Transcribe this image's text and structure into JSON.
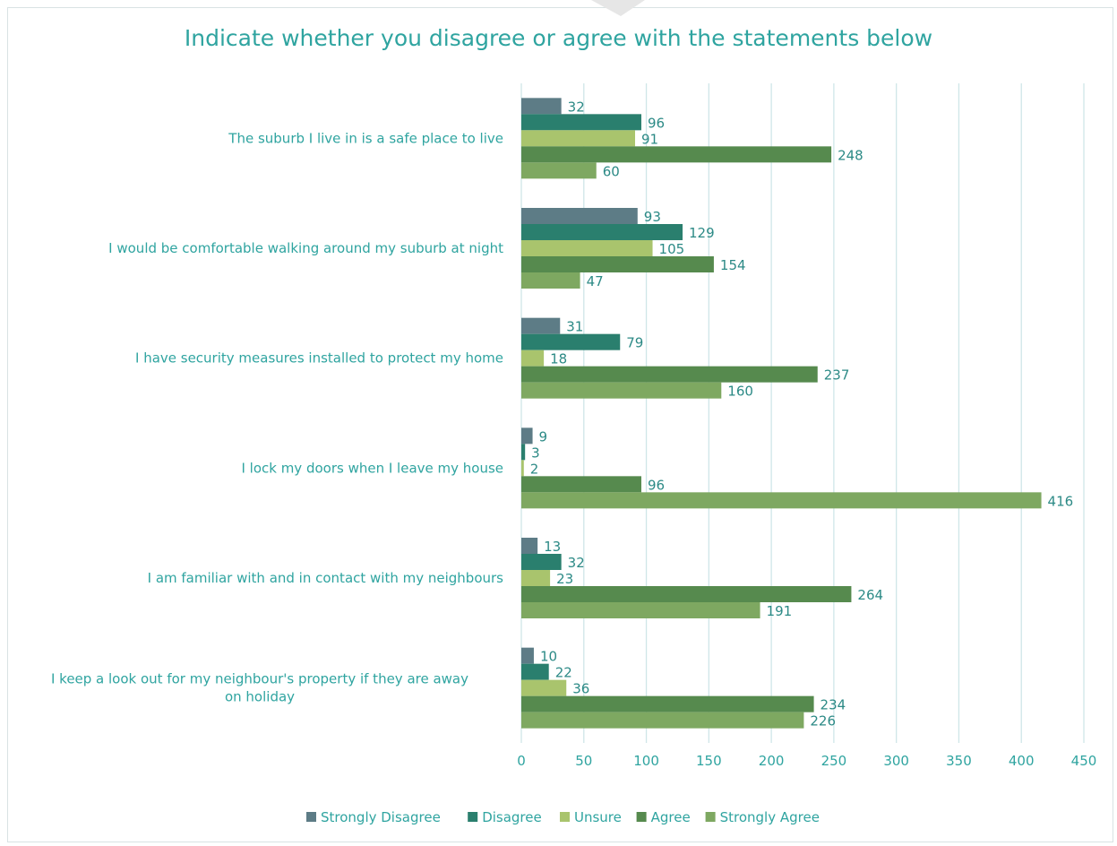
{
  "chart_data": {
    "type": "bar",
    "orientation": "horizontal",
    "title": "Indicate whether you disagree or agree with the statements below",
    "categories": [
      "The suburb I live in is a safe place to live",
      "I would be comfortable walking around my suburb at night",
      "I have security measures installed to protect my home",
      "I lock my doors when I leave my house",
      "I am familiar with and in contact with my neighbours",
      "I keep a look out for my neighbour's property if they are away on holiday"
    ],
    "series": [
      {
        "name": "Strongly Disagree",
        "color": "#5d7c86",
        "values": [
          32,
          93,
          31,
          9,
          13,
          10
        ]
      },
      {
        "name": "Disagree",
        "color": "#2a7f6e",
        "values": [
          96,
          129,
          79,
          3,
          32,
          22
        ]
      },
      {
        "name": "Unsure",
        "color": "#a9c46d",
        "values": [
          91,
          105,
          18,
          2,
          23,
          36
        ]
      },
      {
        "name": "Agree",
        "color": "#568a4e",
        "values": [
          248,
          154,
          237,
          96,
          264,
          234
        ]
      },
      {
        "name": "Strongly Agree",
        "color": "#7ea861",
        "values": [
          60,
          47,
          160,
          416,
          191,
          226
        ]
      }
    ],
    "xlim": [
      0,
      450
    ],
    "xticks": [
      0,
      50,
      100,
      150,
      200,
      250,
      300,
      350,
      400,
      450
    ],
    "xticklabels": [
      "0",
      "50",
      "100",
      "150",
      "200",
      "250",
      "300",
      "350",
      "400",
      "450"
    ],
    "grid": true,
    "legend_position": "bottom",
    "data_labels": true,
    "colors": {
      "title": "#2fa4a0",
      "grid": "#cfe6e8",
      "label": "#2fa4a0"
    }
  }
}
